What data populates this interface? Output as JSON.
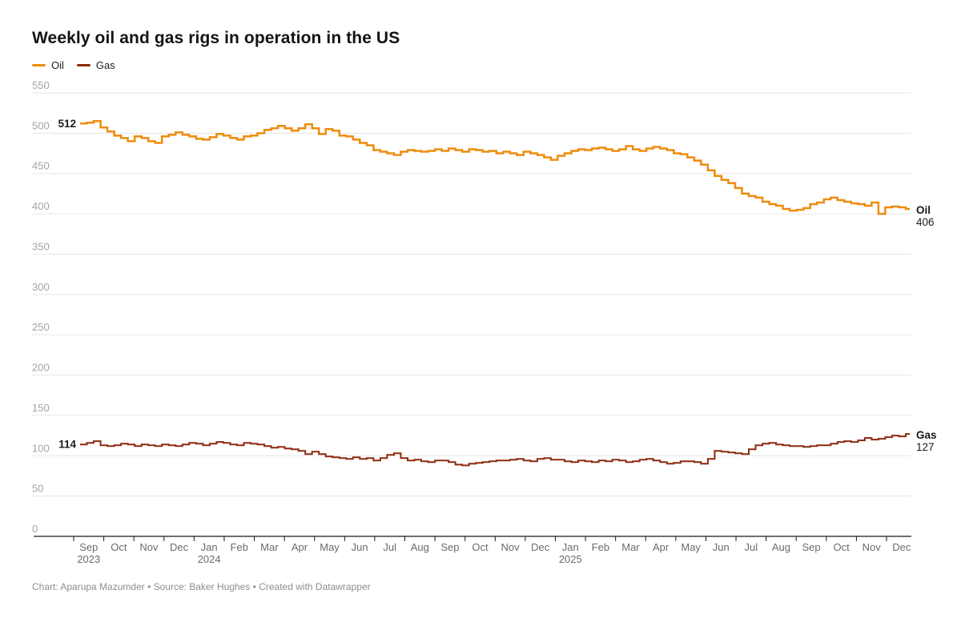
{
  "header": {
    "title": "Weekly oil and gas rigs in operation in the US"
  },
  "legend": {
    "items": [
      {
        "label": "Oil",
        "color": "#EE8C0D"
      },
      {
        "label": "Gas",
        "color": "#8C2A0E"
      }
    ]
  },
  "footer": {
    "text": "Chart: Aparupa Mazumder • Source: Baker Hughes • Created with Datawrapper"
  },
  "chart_data": {
    "type": "line",
    "title": "Weekly oil and gas rigs in operation in the US",
    "interpolation": "step-after",
    "grid": "horizontal",
    "legend_position": "top-left",
    "x_unit": "week",
    "x_range": [
      "Sep 2023",
      "Dec 2025"
    ],
    "ylim": [
      0,
      550
    ],
    "y_ticks": [
      0,
      50,
      100,
      150,
      200,
      250,
      300,
      350,
      400,
      450,
      500,
      550
    ],
    "x_months": [
      "Sep",
      "Oct",
      "Nov",
      "Dec",
      "Jan",
      "Feb",
      "Mar",
      "Apr",
      "May",
      "Jun",
      "Jul",
      "Aug",
      "Sep",
      "Oct",
      "Nov",
      "Dec",
      "Jan",
      "Feb",
      "Mar",
      "Apr",
      "May",
      "Jun",
      "Jul",
      "Aug",
      "Sep",
      "Oct",
      "Nov",
      "Dec"
    ],
    "x_years": [
      {
        "month_index": 0,
        "label": "2023"
      },
      {
        "month_index": 4,
        "label": "2024"
      },
      {
        "month_index": 16,
        "label": "2025"
      }
    ],
    "series": [
      {
        "name": "Oil",
        "color": "#EE8C0D",
        "stroke_width": 2.5,
        "start_label": "512",
        "end_name": "Oil",
        "end_value": "406",
        "values": [
          512,
          513,
          515,
          507,
          502,
          497,
          494,
          490,
          496,
          494,
          490,
          488,
          496,
          498,
          501,
          498,
          496,
          493,
          492,
          495,
          499,
          497,
          494,
          492,
          496,
          497,
          500,
          504,
          506,
          509,
          506,
          503,
          506,
          511,
          506,
          499,
          505,
          503,
          497,
          496,
          492,
          488,
          485,
          479,
          477,
          475,
          473,
          477,
          479,
          478,
          477,
          478,
          480,
          478,
          481,
          479,
          477,
          480,
          479,
          477,
          478,
          475,
          477,
          475,
          473,
          477,
          475,
          473,
          470,
          467,
          472,
          475,
          478,
          480,
          479,
          481,
          482,
          480,
          478,
          480,
          484,
          480,
          478,
          481,
          483,
          481,
          479,
          475,
          474,
          470,
          466,
          461,
          454,
          447,
          442,
          438,
          432,
          425,
          422,
          420,
          415,
          412,
          410,
          406,
          404,
          405,
          407,
          412,
          414,
          418,
          420,
          417,
          415,
          413,
          412,
          410,
          414,
          400,
          408,
          409,
          408,
          406
        ]
      },
      {
        "name": "Gas",
        "color": "#8C2A0E",
        "stroke_width": 2,
        "start_label": "114",
        "end_name": "Gas",
        "end_value": "127",
        "values": [
          114,
          116,
          118,
          113,
          112,
          113,
          115,
          114,
          112,
          114,
          113,
          112,
          114,
          113,
          112,
          114,
          116,
          115,
          113,
          115,
          117,
          116,
          114,
          113,
          116,
          115,
          114,
          112,
          110,
          111,
          109,
          108,
          106,
          102,
          105,
          102,
          99,
          98,
          97,
          96,
          98,
          96,
          97,
          94,
          97,
          101,
          103,
          97,
          94,
          95,
          93,
          92,
          94,
          94,
          92,
          89,
          88,
          90,
          91,
          92,
          93,
          94,
          94,
          95,
          96,
          94,
          93,
          96,
          97,
          95,
          95,
          93,
          92,
          94,
          93,
          92,
          94,
          93,
          95,
          94,
          92,
          93,
          95,
          96,
          94,
          92,
          90,
          91,
          93,
          93,
          92,
          90,
          96,
          106,
          105,
          104,
          103,
          102,
          108,
          113,
          115,
          116,
          114,
          113,
          112,
          112,
          111,
          112,
          113,
          113,
          115,
          117,
          118,
          117,
          119,
          122,
          120,
          121,
          123,
          125,
          124,
          127
        ]
      }
    ]
  }
}
